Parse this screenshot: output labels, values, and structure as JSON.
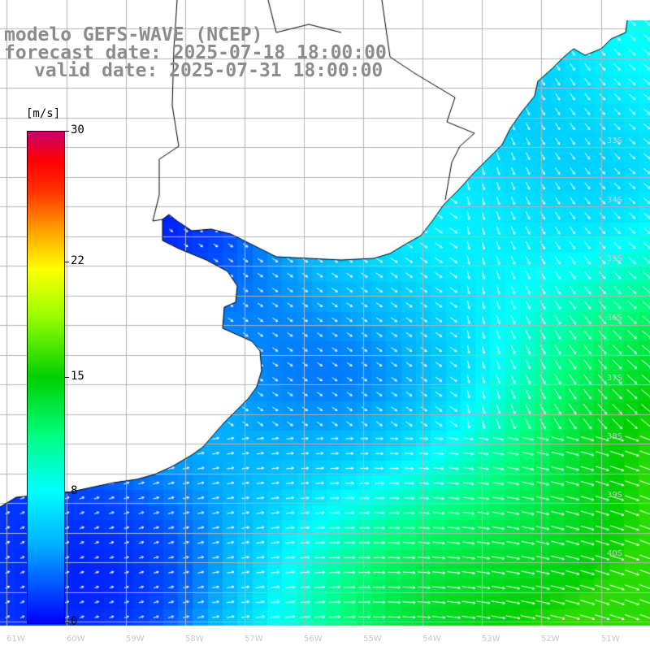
{
  "title": {
    "model": "modelo GEFS-WAVE (NCEP)",
    "forecast": "forecast date: 2025-07-18 18:00:00",
    "valid": "valid date: 2025-07-31 18:00:00"
  },
  "colorbar": {
    "unit": "[m/s]",
    "ticks": [
      "30",
      "22",
      "15",
      "8",
      "0"
    ],
    "tick_values": [
      30,
      22,
      15,
      8,
      0
    ],
    "range": [
      0,
      30
    ]
  },
  "lat_labels": [
    "33S",
    "34S",
    "35S",
    "36S",
    "37S",
    "38S",
    "39S",
    "40S"
  ],
  "lon_labels": [
    "61W",
    "60W",
    "59W",
    "58W",
    "57W",
    "56W",
    "55W",
    "54W",
    "53W",
    "52W",
    "51W"
  ],
  "colors": {
    "land": "#ffffff",
    "grid": "#b4b4b4",
    "coast": "#000000",
    "arrows": "#ffffff",
    "title": "#8c8c8c"
  }
}
